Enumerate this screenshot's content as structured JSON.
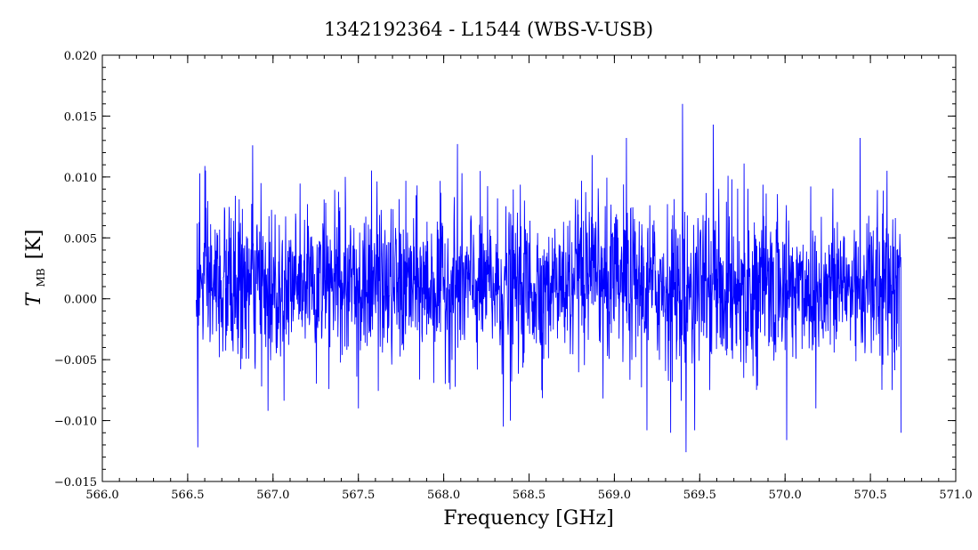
{
  "chart_data": {
    "type": "line",
    "title": "1342192364 - L1544 (WBS-V-USB)",
    "xlabel": "Frequency [GHz]",
    "ylabel_main": "T",
    "ylabel_sub": "MB",
    "ylabel_unit": "[K]",
    "xlim": [
      566.0,
      571.0
    ],
    "ylim": [
      -0.015,
      0.02
    ],
    "x_ticks": [
      566.0,
      566.5,
      567.0,
      567.5,
      568.0,
      568.5,
      569.0,
      569.5,
      570.0,
      570.5,
      571.0
    ],
    "x_tick_labels": [
      "566.0",
      "566.5",
      "567.0",
      "567.5",
      "568.0",
      "568.5",
      "569.0",
      "569.5",
      "570.0",
      "570.5",
      "571.0"
    ],
    "y_ticks": [
      -0.015,
      -0.01,
      -0.005,
      0.0,
      0.005,
      0.01,
      0.015,
      0.02
    ],
    "y_tick_labels": [
      "−0.015",
      "−0.010",
      "−0.005",
      "0.000",
      "0.005",
      "0.010",
      "0.015",
      "0.020"
    ],
    "grid": false,
    "series": [
      {
        "color": "#0000ff",
        "x_range": [
          566.55,
          570.68
        ],
        "n_points": 2200,
        "mean": 0.001,
        "noise_sigma": 0.0032,
        "spikes": [
          {
            "x": 566.56,
            "y": -0.0122
          },
          {
            "x": 566.57,
            "y": 0.0103
          },
          {
            "x": 566.6,
            "y": 0.0109
          },
          {
            "x": 566.88,
            "y": 0.0126
          },
          {
            "x": 566.97,
            "y": -0.0092
          },
          {
            "x": 567.5,
            "y": -0.009
          },
          {
            "x": 568.08,
            "y": 0.0127
          },
          {
            "x": 568.35,
            "y": -0.0105
          },
          {
            "x": 568.39,
            "y": -0.01
          },
          {
            "x": 568.87,
            "y": 0.0118
          },
          {
            "x": 569.07,
            "y": 0.0132
          },
          {
            "x": 569.19,
            "y": -0.0108
          },
          {
            "x": 569.33,
            "y": -0.011
          },
          {
            "x": 569.4,
            "y": 0.016
          },
          {
            "x": 569.42,
            "y": -0.0126
          },
          {
            "x": 569.47,
            "y": -0.0108
          },
          {
            "x": 569.58,
            "y": 0.0143
          },
          {
            "x": 569.76,
            "y": 0.0111
          },
          {
            "x": 570.01,
            "y": -0.0116
          },
          {
            "x": 570.18,
            "y": -0.009
          },
          {
            "x": 570.44,
            "y": 0.0132
          },
          {
            "x": 570.68,
            "y": -0.011
          }
        ]
      }
    ]
  }
}
